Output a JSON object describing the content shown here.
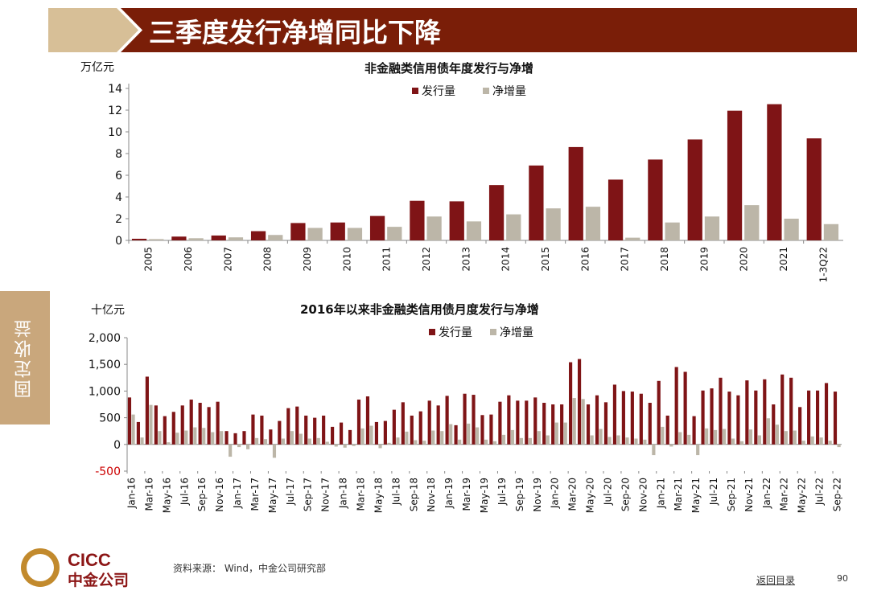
{
  "slide": {
    "title": "三季度发行净增同比下降",
    "side_tab": "固定收益",
    "source": "资料来源： Wind，中金公司研究部",
    "back_link": "返回目录",
    "page_number": "90",
    "logo_en": "CICC",
    "logo_cn": "中金公司"
  },
  "colors": {
    "banner": "#7a1e08",
    "banner_light": "#d7bf97",
    "issuance": "#7f1416",
    "net": "#bcb6a8",
    "negative_tick": "#cc0000",
    "side_tab": "#c9a77c",
    "logo_red": "#8c1616",
    "logo_gold": "#c28a2d"
  },
  "chart_data": [
    {
      "type": "bar",
      "title": "非金融类信用债年度发行与净增",
      "ylabel": "万亿元",
      "ylim": [
        0,
        14
      ],
      "yticks": [
        0,
        2,
        4,
        6,
        8,
        10,
        12,
        14
      ],
      "categories": [
        "2005",
        "2006",
        "2007",
        "2008",
        "2009",
        "2010",
        "2011",
        "2012",
        "2013",
        "2014",
        "2015",
        "2016",
        "2017",
        "2018",
        "2019",
        "2020",
        "2021",
        "1-3Q22"
      ],
      "series": [
        {
          "name": "发行量",
          "values": [
            0.15,
            0.35,
            0.45,
            0.85,
            1.6,
            1.65,
            2.25,
            3.65,
            3.6,
            5.1,
            6.9,
            8.6,
            5.6,
            7.45,
            9.3,
            11.95,
            12.55,
            9.4
          ]
        },
        {
          "name": "净增量",
          "values": [
            0.12,
            0.2,
            0.28,
            0.5,
            1.15,
            1.15,
            1.25,
            2.2,
            1.75,
            2.4,
            2.95,
            3.1,
            0.25,
            1.65,
            2.2,
            3.25,
            2.0,
            1.5
          ]
        }
      ],
      "legend": "top-center"
    },
    {
      "type": "bar",
      "title": "2016年以来非金融类信用债月度发行与净增",
      "ylabel": "十亿元",
      "ylim": [
        -500,
        2000
      ],
      "yticks": [
        -500,
        0,
        500,
        1000,
        1500,
        2000
      ],
      "ytick_labels": [
        "-500",
        "0",
        "500",
        "1,000",
        "1,500",
        "2,000"
      ],
      "categories": [
        "Jan-16",
        "Feb-16",
        "Mar-16",
        "Apr-16",
        "May-16",
        "Jun-16",
        "Jul-16",
        "Aug-16",
        "Sep-16",
        "Oct-16",
        "Nov-16",
        "Dec-16",
        "Jan-17",
        "Feb-17",
        "Mar-17",
        "Apr-17",
        "May-17",
        "Jun-17",
        "Jul-17",
        "Aug-17",
        "Sep-17",
        "Oct-17",
        "Nov-17",
        "Dec-17",
        "Jan-18",
        "Feb-18",
        "Mar-18",
        "Apr-18",
        "May-18",
        "Jun-18",
        "Jul-18",
        "Aug-18",
        "Sep-18",
        "Oct-18",
        "Nov-18",
        "Dec-18",
        "Jan-19",
        "Feb-19",
        "Mar-19",
        "Apr-19",
        "May-19",
        "Jun-19",
        "Jul-19",
        "Aug-19",
        "Sep-19",
        "Oct-19",
        "Nov-19",
        "Dec-19",
        "Jan-20",
        "Feb-20",
        "Mar-20",
        "Apr-20",
        "May-20",
        "Jun-20",
        "Jul-20",
        "Aug-20",
        "Sep-20",
        "Oct-20",
        "Nov-20",
        "Dec-20",
        "Jan-21",
        "Feb-21",
        "Mar-21",
        "Apr-21",
        "May-21",
        "Jun-21",
        "Jul-21",
        "Aug-21",
        "Sep-21",
        "Oct-21",
        "Nov-21",
        "Dec-21",
        "Jan-22",
        "Feb-22",
        "Mar-22",
        "Apr-22",
        "May-22",
        "Jun-22",
        "Jul-22",
        "Aug-22",
        "Sep-22"
      ],
      "x_tick_labels": [
        "Jan-16",
        "Mar-16",
        "May-16",
        "Jul-16",
        "Sep-16",
        "Nov-16",
        "Jan-17",
        "Mar-17",
        "May-17",
        "Jul-17",
        "Sep-17",
        "Nov-17",
        "Jan-18",
        "Mar-18",
        "May-18",
        "Jul-18",
        "Sep-18",
        "Nov-18",
        "Jan-19",
        "Mar-19",
        "May-19",
        "Jul-19",
        "Sep-19",
        "Nov-19",
        "Jan-20",
        "Mar-20",
        "May-20",
        "Jul-20",
        "Sep-20",
        "Nov-20",
        "Jan-21",
        "Mar-21",
        "May-21",
        "Jul-21",
        "Sep-21",
        "Nov-21",
        "Jan-22",
        "Mar-22",
        "May-22",
        "Jul-22",
        "Sep-22"
      ],
      "series": [
        {
          "name": "发行量",
          "values": [
            880,
            420,
            1270,
            730,
            530,
            610,
            730,
            840,
            780,
            700,
            800,
            250,
            210,
            250,
            560,
            540,
            280,
            440,
            680,
            710,
            540,
            500,
            540,
            330,
            410,
            270,
            840,
            900,
            420,
            440,
            650,
            790,
            540,
            620,
            820,
            730,
            910,
            360,
            950,
            930,
            550,
            560,
            800,
            920,
            820,
            820,
            880,
            780,
            750,
            750,
            1540,
            1600,
            750,
            920,
            790,
            1120,
            1000,
            990,
            950,
            780,
            1190,
            540,
            1450,
            1360,
            530,
            1010,
            1050,
            1250,
            990,
            920,
            1200,
            1010,
            1220,
            750,
            1310,
            1250,
            700,
            1010,
            1010,
            1150,
            990
          ]
        },
        {
          "name": "净增量",
          "values": [
            560,
            130,
            740,
            250,
            40,
            220,
            260,
            320,
            310,
            230,
            250,
            -230,
            -50,
            -90,
            120,
            100,
            -250,
            110,
            250,
            200,
            110,
            120,
            50,
            -40,
            -60,
            -30,
            300,
            350,
            -70,
            30,
            130,
            240,
            80,
            70,
            260,
            250,
            380,
            90,
            390,
            320,
            90,
            60,
            180,
            270,
            120,
            120,
            250,
            170,
            410,
            410,
            870,
            850,
            170,
            290,
            140,
            170,
            130,
            110,
            90,
            -200,
            330,
            -40,
            230,
            180,
            -200,
            300,
            270,
            290,
            110,
            60,
            280,
            170,
            490,
            370,
            250,
            260,
            70,
            150,
            130,
            70,
            -50
          ]
        }
      ],
      "legend": "top-center"
    }
  ]
}
